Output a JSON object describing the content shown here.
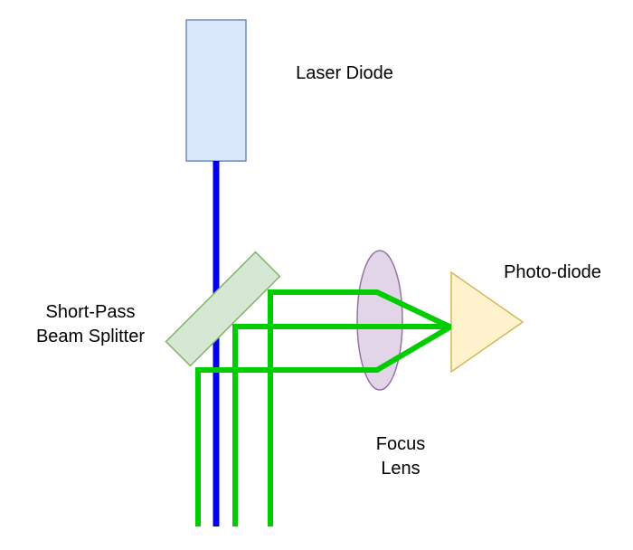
{
  "labels": {
    "laser_diode": "Laser Diode",
    "photo_diode": "Photo-diode",
    "beam_splitter": [
      "Short-Pass",
      "Beam Splitter"
    ],
    "focus_lens": [
      "Focus",
      "Lens"
    ]
  },
  "colors": {
    "laser_beam": "#0000ee",
    "signal_beam": "#00cc00",
    "laser_diode_fill": "#dae8fc",
    "laser_diode_stroke": "#6c8ebf",
    "beam_splitter_fill": "#d5e8d4",
    "beam_splitter_stroke": "#82b366",
    "lens_fill": "#e1d5e7",
    "lens_stroke": "#9673a6",
    "photodiode_fill": "#fff2cc",
    "photodiode_stroke": "#d6b656"
  }
}
